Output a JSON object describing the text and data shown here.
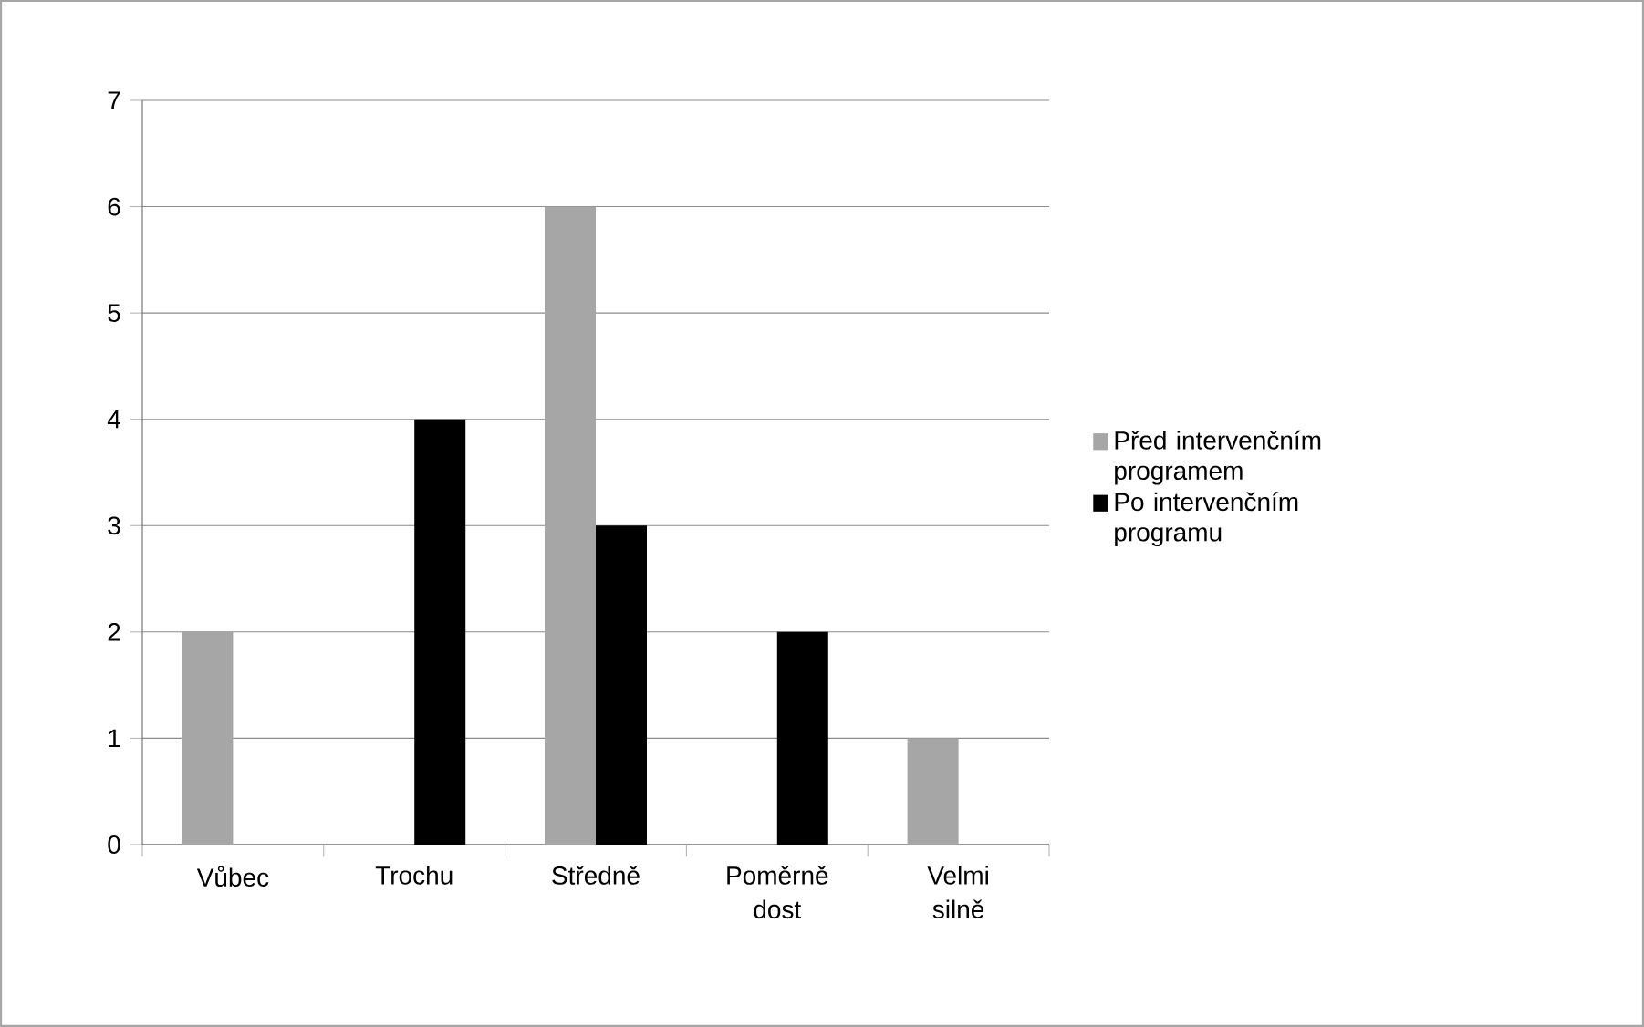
{
  "chart_data": {
    "type": "bar",
    "categories": [
      "Vůbec",
      "Trochu",
      "Středně",
      "Poměrně dost",
      "Velmi silně"
    ],
    "series": [
      {
        "name": "Před intervenčním programem",
        "color": "#a6a6a6",
        "values": [
          2,
          0,
          6,
          0,
          1
        ]
      },
      {
        "name": "Po intervenčním programu",
        "color": "#000000",
        "values": [
          0,
          4,
          3,
          2,
          0
        ]
      }
    ],
    "ylim": [
      0,
      7
    ],
    "yticks": [
      0,
      1,
      2,
      3,
      4,
      5,
      6,
      7
    ],
    "grid": "y",
    "legend": "right"
  }
}
